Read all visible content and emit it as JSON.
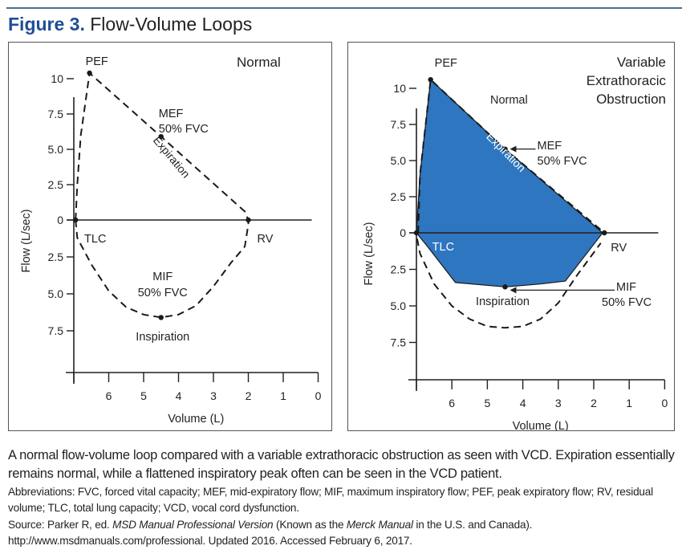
{
  "header": {
    "figure_label": "Figure 3.",
    "figure_title": " Flow-Volume Loops",
    "accent_color": "#1f4e96",
    "rule_color": "#4a6f94"
  },
  "chart_data": [
    {
      "type": "line",
      "title": "Normal",
      "xlabel": "Volume (L)",
      "ylabel": "Flow (L/sec)",
      "x_ticks": [
        "6",
        "5",
        "4",
        "3",
        "2",
        "1",
        "0"
      ],
      "y_ticks_up": [
        "10",
        "7.5",
        "5.0",
        "2.5",
        "0"
      ],
      "y_ticks_down": [
        "2.5",
        "5.0",
        "7.5"
      ],
      "xlim": [
        7,
        0
      ],
      "ylim": [
        -10,
        11
      ],
      "series": [
        {
          "name": "Expiration",
          "style": "dashed",
          "points": [
            [
              6.95,
              0
            ],
            [
              6.9,
              2.5
            ],
            [
              6.8,
              6
            ],
            [
              6.55,
              10.4
            ],
            [
              4.5,
              5.9
            ],
            [
              2.1,
              0.6
            ],
            [
              2.0,
              0
            ]
          ]
        },
        {
          "name": "Inspiration",
          "style": "dashed",
          "points": [
            [
              6.95,
              0
            ],
            [
              6.9,
              -1.2
            ],
            [
              6.5,
              -3.0
            ],
            [
              6.0,
              -4.8
            ],
            [
              5.5,
              -5.9
            ],
            [
              5.0,
              -6.4
            ],
            [
              4.5,
              -6.6
            ],
            [
              4.0,
              -6.4
            ],
            [
              3.5,
              -5.8
            ],
            [
              3.0,
              -4.5
            ],
            [
              2.5,
              -2.9
            ],
            [
              2.1,
              -1.8
            ],
            [
              2.0,
              -0.3
            ],
            [
              2.0,
              0
            ]
          ]
        }
      ],
      "points_labeled": [
        {
          "label": "PEF",
          "x": 6.55,
          "y": 10.4
        },
        {
          "label": "MEF\n50% FVC",
          "x": 4.5,
          "y": 5.9
        },
        {
          "label": "TLC",
          "x": 6.95,
          "y": 0
        },
        {
          "label": "RV",
          "x": 2.0,
          "y": 0
        },
        {
          "label": "MIF\n50% FVC",
          "x": 4.5,
          "y": -6.6
        }
      ],
      "annotations": {
        "pef": "PEF",
        "mef_line1": "MEF",
        "mef_line2": "50% FVC",
        "expiration": "Expiration",
        "tlc": "TLC",
        "rv": "RV",
        "mif_line1": "MIF",
        "mif_line2": "50% FVC",
        "inspiration": "Inspiration"
      }
    },
    {
      "type": "area",
      "title": "Variable Extrathoracic Obstruction",
      "title_lines": [
        "Variable",
        "Extrathoracic",
        "Obstruction"
      ],
      "xlabel": "Volume (L)",
      "ylabel": "Flow (L/sec)",
      "x_ticks": [
        "6",
        "5",
        "4",
        "3",
        "2",
        "1",
        "0"
      ],
      "y_ticks_up": [
        "10",
        "7.5",
        "5.0",
        "2.5",
        "0"
      ],
      "y_ticks_down": [
        "2.5",
        "5.0",
        "7.5"
      ],
      "xlim": [
        7,
        0
      ],
      "ylim": [
        -10,
        11
      ],
      "fill_color": "#2e76c0",
      "series": [
        {
          "name": "Obstruction loop",
          "style": "solid-filled",
          "points": [
            [
              7.0,
              0
            ],
            [
              6.9,
              4.0
            ],
            [
              6.6,
              10.6
            ],
            [
              4.5,
              5.8
            ],
            [
              1.75,
              0
            ],
            [
              2.8,
              -3.3
            ],
            [
              3.5,
              -3.5
            ],
            [
              4.5,
              -3.7
            ],
            [
              5.9,
              -3.4
            ],
            [
              6.7,
              -0.9
            ],
            [
              7.0,
              0
            ]
          ]
        },
        {
          "name": "Normal",
          "style": "dashed",
          "points": [
            [
              6.95,
              0
            ],
            [
              6.9,
              4.0
            ],
            [
              6.6,
              10.6
            ],
            [
              4.5,
              5.8
            ],
            [
              1.7,
              0
            ]
          ]
        },
        {
          "name": "Normal inspiration",
          "style": "dashed",
          "points": [
            [
              6.98,
              -0.4
            ],
            [
              6.9,
              -1.4
            ],
            [
              6.5,
              -3.5
            ],
            [
              6.0,
              -5.0
            ],
            [
              5.5,
              -5.9
            ],
            [
              5.0,
              -6.4
            ],
            [
              4.5,
              -6.5
            ],
            [
              4.0,
              -6.4
            ],
            [
              3.5,
              -5.9
            ],
            [
              3.0,
              -4.8
            ],
            [
              2.5,
              -3.0
            ],
            [
              1.8,
              -0.7
            ]
          ]
        }
      ],
      "points_labeled": [
        {
          "label": "PEF",
          "x": 6.6,
          "y": 10.6
        },
        {
          "label": "MEF\n50% FVC",
          "x": 4.5,
          "y": 5.8
        },
        {
          "label": "TLC",
          "x": 7.0,
          "y": 0
        },
        {
          "label": "RV",
          "x": 1.7,
          "y": 0
        },
        {
          "label": "MIF\n50% FVC",
          "x": 4.5,
          "y": -3.7
        }
      ],
      "annotations": {
        "pef": "PEF",
        "normal": "Normal",
        "mef_line1": "MEF",
        "mef_line2": "50% FVC",
        "expiration": "Expiration",
        "tlc": "TLC",
        "rv": "RV",
        "mif_line1": "MIF",
        "mif_line2": "50% FVC",
        "inspiration": "Inspiration"
      }
    }
  ],
  "caption": {
    "main": "A normal flow-volume loop compared with a variable extrathoracic obstruction as seen with VCD. Expiration essentially remains normal, while a flattened inspiratory peak often can be seen in the VCD patient.",
    "abbreviations": "Abbreviations: FVC, forced vital capacity; MEF, mid-expiratory flow; MIF, maximum inspiratory flow; PEF, peak expiratory flow; RV, residual volume; TLC, total lung capacity; VCD, vocal cord dysfunction.",
    "source_prefix": "Source: Parker R, ed. ",
    "source_title": "MSD Manual Professional Version",
    "source_mid": " (Known as the ",
    "source_alt_title": "Merck Manual",
    "source_suffix": " in the U.S. and Canada).",
    "source_url_line": "http://www.msdmanuals.com/professional. Updated 2016. Accessed February 6, 2017."
  }
}
